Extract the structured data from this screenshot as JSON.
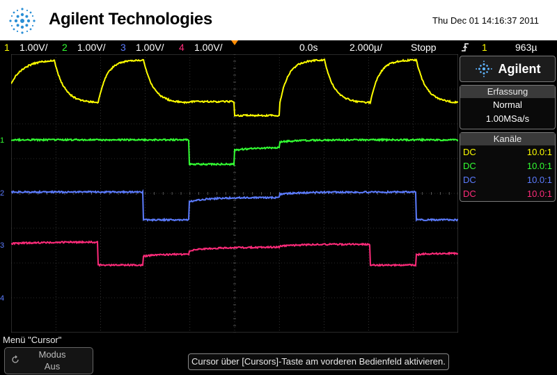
{
  "header": {
    "brand": "Agilent Technologies",
    "datetime": "Thu Dec 01 14:16:37 2011"
  },
  "statusbar": {
    "channels": [
      {
        "num": "1",
        "scale": "1.00V/",
        "color": "#ffff00"
      },
      {
        "num": "2",
        "scale": "1.00V/",
        "color": "#33ff33"
      },
      {
        "num": "3",
        "scale": "1.00V/",
        "color": "#5c7cff"
      },
      {
        "num": "4",
        "scale": "1.00V/",
        "color": "#ff2b7a"
      }
    ],
    "delay": "0.0s",
    "timebase": "2.000µ/",
    "run_state": "Stopp",
    "trigger_source": "1",
    "trigger_level": "963µ"
  },
  "sidepanel": {
    "logo": "Agilent",
    "acquisition": {
      "title": "Erfassung",
      "mode": "Normal",
      "rate": "1.00MSa/s"
    },
    "channels_panel": {
      "title": "Kanäle",
      "rows": [
        {
          "coupling": "DC",
          "probe": "10.0:1",
          "color": "#ffff00"
        },
        {
          "coupling": "DC",
          "probe": "10.0:1",
          "color": "#33ff33"
        },
        {
          "coupling": "DC",
          "probe": "10.0:1",
          "color": "#5c7cff"
        },
        {
          "coupling": "DC",
          "probe": "10.0:1",
          "color": "#ff2b7a"
        }
      ]
    }
  },
  "bottom": {
    "menu_title": "Menü \"Cursor\"",
    "softkey": {
      "label": "Modus",
      "value": "Aus"
    },
    "hint": "Cursor über [Cursors]-Taste am vorderen Bedienfeld aktivieren."
  },
  "colors": {
    "ch1": "#ffff00",
    "ch2": "#33ff33",
    "ch3": "#5c7cff",
    "ch4": "#ff2b7a",
    "trigger": "#ff8c00"
  },
  "icons": {
    "logo": "agilent-spark-icon",
    "trigger": "rising-edge-icon",
    "softkey": "rotate-knob-icon"
  }
}
